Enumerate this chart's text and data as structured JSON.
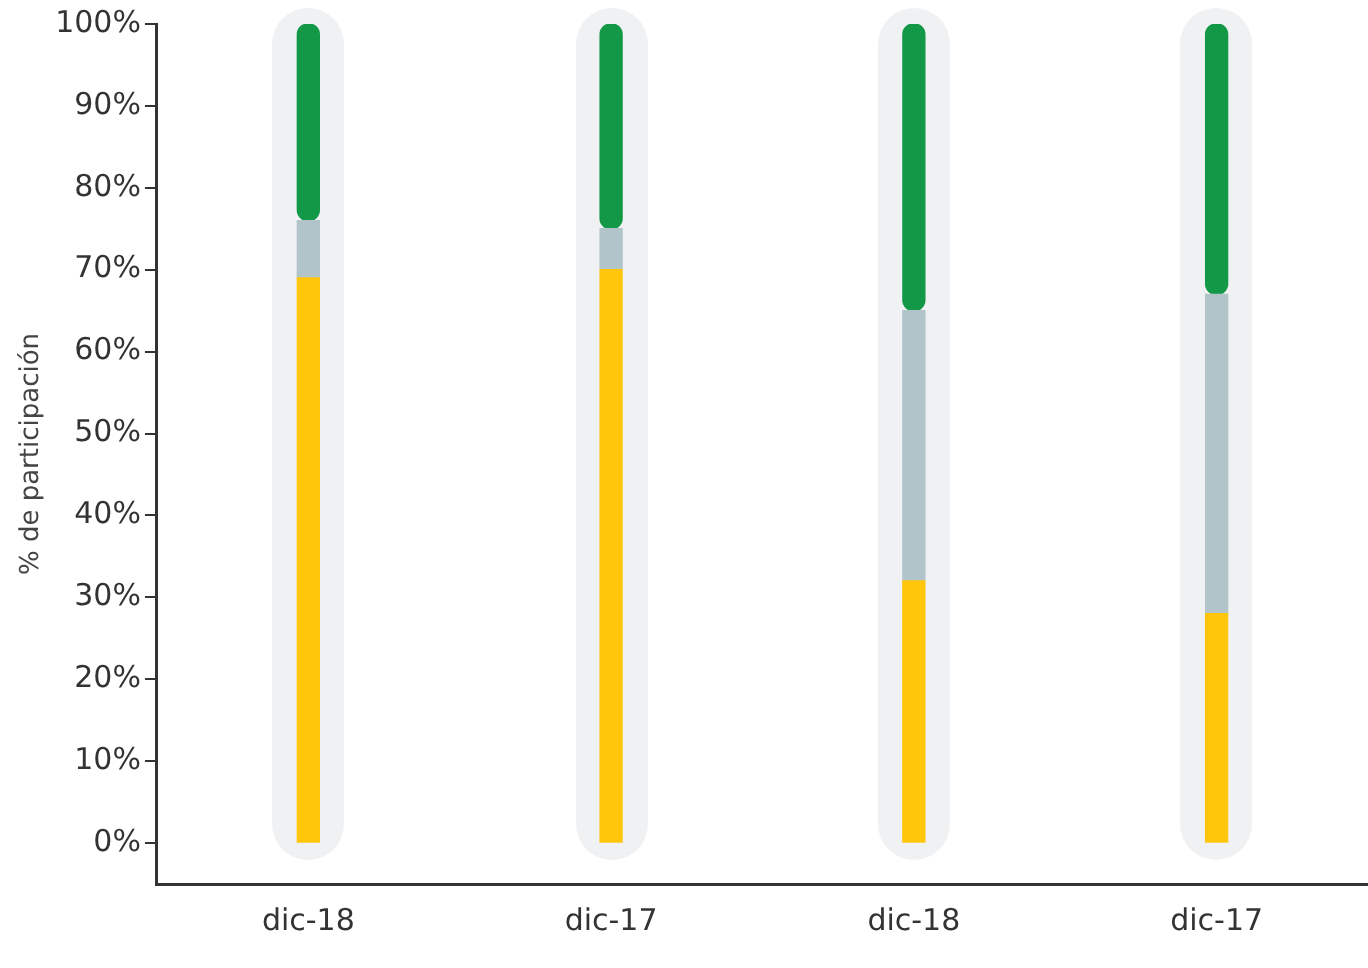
{
  "chart_data": {
    "type": "bar",
    "stacked": true,
    "ylabel": "% de participación",
    "categories": [
      "dic-18",
      "dic-17",
      "dic-18",
      "dic-17"
    ],
    "series": [
      {
        "color": "#ffc60b",
        "values": [
          69,
          70,
          32,
          28
        ]
      },
      {
        "color": "#b0c4ca",
        "values": [
          7,
          5,
          33,
          39
        ]
      },
      {
        "color": "#129847",
        "values": [
          24,
          25,
          35,
          33
        ]
      }
    ],
    "ylim": [
      -5,
      100
    ],
    "yticks": [
      {
        "value": 0,
        "label": "0%"
      },
      {
        "value": 10,
        "label": "10%"
      },
      {
        "value": 20,
        "label": "20%"
      },
      {
        "value": 30,
        "label": "30%"
      },
      {
        "value": 40,
        "label": "40%"
      },
      {
        "value": 50,
        "label": "50%"
      },
      {
        "value": 60,
        "label": "60%"
      },
      {
        "value": 70,
        "label": "70%"
      },
      {
        "value": 80,
        "label": "80%"
      },
      {
        "value": 90,
        "label": "90%"
      },
      {
        "value": 100,
        "label": "100%"
      }
    ],
    "grid": false,
    "legend": false
  }
}
